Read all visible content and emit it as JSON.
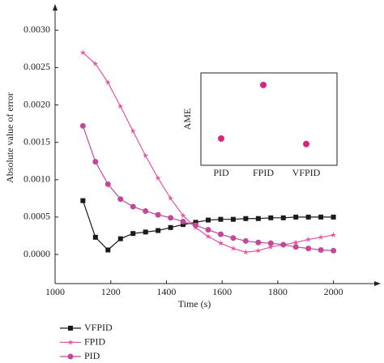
{
  "chart_data": [
    {
      "type": "line",
      "xlabel": "Time (s)",
      "ylabel": "Absolute value of error",
      "x": [
        1100,
        1145,
        1190,
        1235,
        1280,
        1325,
        1370,
        1415,
        1460,
        1505,
        1550,
        1595,
        1640,
        1685,
        1730,
        1775,
        1820,
        1865,
        1910,
        1955,
        2000
      ],
      "series": [
        {
          "name": "VFPID",
          "color": "#1a1a1a",
          "marker": "square",
          "values": [
            0.00072,
            0.00023,
            6e-05,
            0.00021,
            0.00028,
            0.0003,
            0.00032,
            0.00036,
            0.0004,
            0.00043,
            0.00046,
            0.00047,
            0.00047,
            0.00048,
            0.00048,
            0.00049,
            0.00049,
            0.0005,
            0.0005,
            0.0005,
            0.0005
          ]
        },
        {
          "name": "FPID",
          "color": "#e4559f",
          "marker": "star",
          "values": [
            0.0027,
            0.00255,
            0.0023,
            0.00198,
            0.00165,
            0.00132,
            0.00102,
            0.00075,
            0.00052,
            0.00036,
            0.00024,
            0.00015,
            8e-05,
            3e-05,
            5e-05,
            0.0001,
            0.00013,
            0.00016,
            0.0002,
            0.00023,
            0.00026
          ]
        },
        {
          "name": "PID",
          "color": "#c3489a",
          "marker": "circle",
          "values": [
            0.00172,
            0.00124,
            0.00094,
            0.00074,
            0.00064,
            0.00058,
            0.00053,
            0.00049,
            0.00044,
            0.00039,
            0.00033,
            0.00027,
            0.00022,
            0.00018,
            0.00016,
            0.00015,
            0.00013,
            0.0001,
            8e-05,
            6e-05,
            5e-05
          ]
        }
      ],
      "xlim": [
        1000,
        2170
      ],
      "ylim": [
        -0.00039,
        0.00335
      ],
      "xticks": [
        1000,
        1200,
        1400,
        1600,
        1800,
        2000
      ],
      "yticks": [
        {
          "value": 0,
          "label": "0.0000"
        },
        {
          "value": 0.0005,
          "label": "0.0005"
        },
        {
          "value": 0.001,
          "label": "0.0010"
        },
        {
          "value": 0.0015,
          "label": "0.0015"
        },
        {
          "value": 0.002,
          "label": "0.0020"
        },
        {
          "value": 0.0025,
          "label": "0.0025"
        },
        {
          "value": 0.003,
          "label": "0.0030"
        }
      ]
    },
    {
      "type": "scatter",
      "ylabel": "AME",
      "categories": [
        "PID",
        "FPID",
        "VFPID"
      ],
      "values": [
        0.29,
        0.87,
        0.23
      ],
      "color": "#d6267e",
      "ylim": [
        0,
        1
      ]
    }
  ]
}
